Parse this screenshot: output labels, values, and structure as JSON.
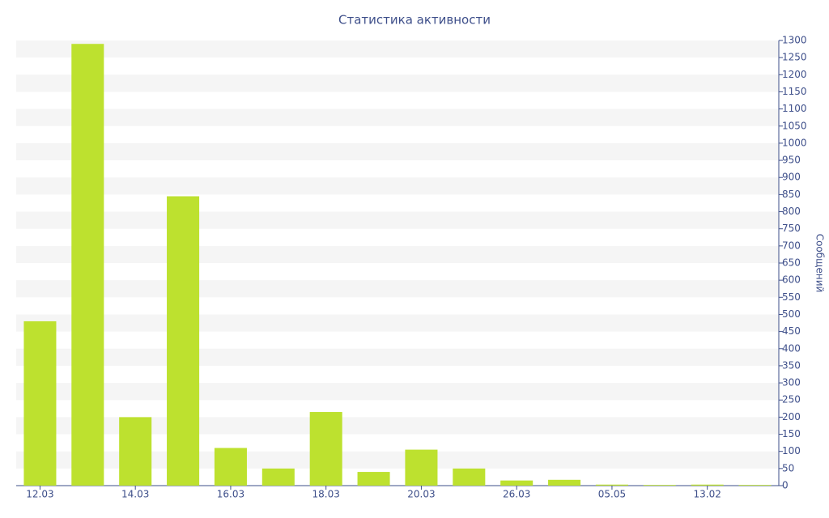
{
  "chart_data": {
    "type": "bar",
    "title": "Статистика активности",
    "y_axis_label": "Сообщений",
    "categories": [
      "12.03",
      null,
      "14.03",
      null,
      "16.03",
      null,
      "18.03",
      null,
      "20.03",
      null,
      "26.03",
      null,
      "05.05",
      null,
      "13.02",
      null
    ],
    "values": [
      480,
      1290,
      200,
      845,
      110,
      50,
      215,
      40,
      105,
      50,
      15,
      17,
      3,
      2,
      3,
      2
    ],
    "color": "#bde12f",
    "ylim": [
      0,
      1300
    ],
    "yticks": [
      0,
      50,
      100,
      150,
      200,
      250,
      300,
      350,
      400,
      450,
      500,
      550,
      600,
      650,
      700,
      750,
      800,
      850,
      900,
      950,
      1000,
      1050,
      1100,
      1150,
      1200,
      1250,
      1300
    ],
    "grid": true
  }
}
